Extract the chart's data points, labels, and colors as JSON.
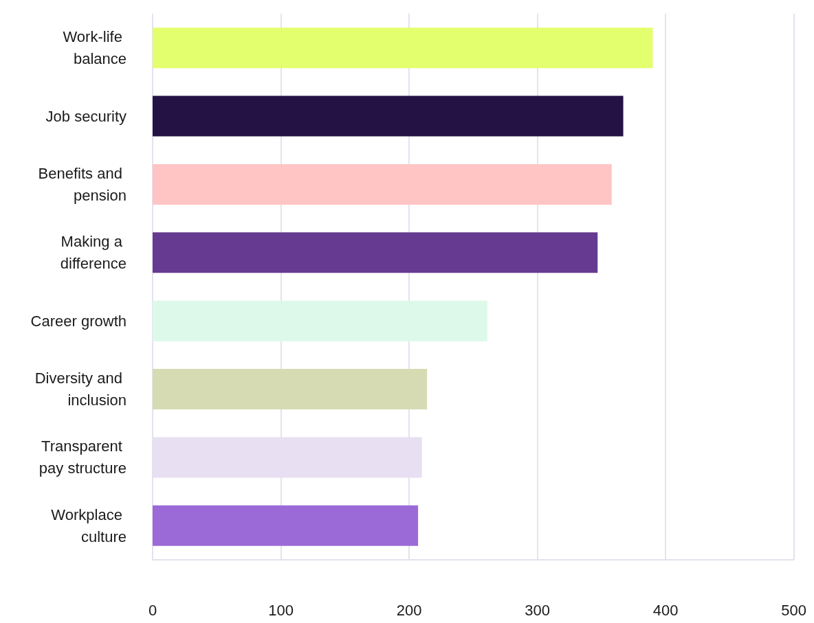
{
  "chart_data": {
    "type": "bar",
    "orientation": "horizontal",
    "categories": [
      "Work-life balance",
      "Job security",
      "Benefits and pension",
      "Making a difference",
      "Career growth",
      "Diversity and inclusion",
      "Transparent pay structure",
      "Workplace culture"
    ],
    "values": [
      390,
      367,
      358,
      347,
      261,
      214,
      210,
      207
    ],
    "colors": [
      "#e4ff6e",
      "#251244",
      "#ffc4c4",
      "#663a90",
      "#ddf9ea",
      "#d6dbb3",
      "#e8dff2",
      "#9b6ad6"
    ],
    "xlim": [
      0,
      500
    ],
    "xticks": [
      0,
      100,
      200,
      300,
      400,
      500
    ],
    "grid": "x"
  }
}
